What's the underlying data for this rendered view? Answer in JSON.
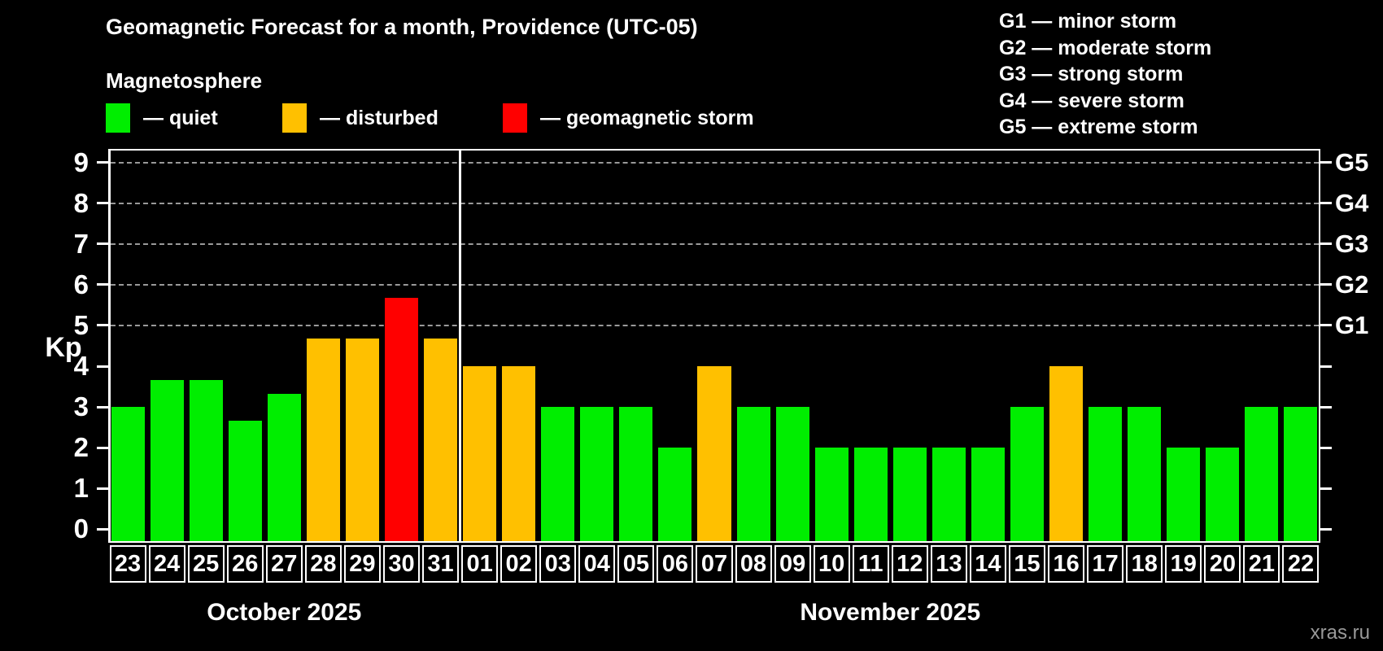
{
  "title": "Geomagnetic Forecast for a month, Providence (UTC-05)",
  "subtitle": "Magnetosphere",
  "legend": {
    "items": [
      {
        "status": "quiet",
        "label": "— quiet",
        "color": "#00ee00"
      },
      {
        "status": "disturbed",
        "label": "— disturbed",
        "color": "#ffc000"
      },
      {
        "status": "storm",
        "label": "— geomagnetic storm",
        "color": "#ff0000"
      }
    ]
  },
  "storm_scale_legend": [
    "G1 — minor storm",
    "G2 — moderate storm",
    "G3 — strong storm",
    "G4 — severe storm",
    "G5 — extreme storm"
  ],
  "watermark": "xras.ru",
  "chart_data": {
    "type": "bar",
    "title": "Geomagnetic Forecast for a month, Providence (UTC-05)",
    "ylabel": "Kp",
    "ylim": [
      -0.33,
      9.33
    ],
    "grid": "dashed horizontal lines at Kp 5-9 only",
    "kp_ticks": [
      0,
      1,
      2,
      3,
      4,
      5,
      6,
      7,
      8,
      9
    ],
    "g_levels": [
      {
        "kp": 5,
        "label": "G1"
      },
      {
        "kp": 6,
        "label": "G2"
      },
      {
        "kp": 7,
        "label": "G3"
      },
      {
        "kp": 8,
        "label": "G4"
      },
      {
        "kp": 9,
        "label": "G5"
      }
    ],
    "colors": {
      "quiet": "#00ee00",
      "disturbed": "#ffc000",
      "storm": "#ff0000"
    },
    "months": [
      {
        "label": "October 2025",
        "count": 9
      },
      {
        "label": "November 2025",
        "count": 22
      }
    ],
    "bars": [
      {
        "day": "23",
        "month": "October 2025",
        "value": 3.0,
        "status": "quiet"
      },
      {
        "day": "24",
        "month": "October 2025",
        "value": 3.67,
        "status": "quiet"
      },
      {
        "day": "25",
        "month": "October 2025",
        "value": 3.67,
        "status": "quiet"
      },
      {
        "day": "26",
        "month": "October 2025",
        "value": 2.67,
        "status": "quiet"
      },
      {
        "day": "27",
        "month": "October 2025",
        "value": 3.33,
        "status": "quiet"
      },
      {
        "day": "28",
        "month": "October 2025",
        "value": 4.67,
        "status": "disturbed"
      },
      {
        "day": "29",
        "month": "October 2025",
        "value": 4.67,
        "status": "disturbed"
      },
      {
        "day": "30",
        "month": "October 2025",
        "value": 5.67,
        "status": "storm"
      },
      {
        "day": "31",
        "month": "October 2025",
        "value": 4.67,
        "status": "disturbed"
      },
      {
        "day": "01",
        "month": "November 2025",
        "value": 4.0,
        "status": "disturbed"
      },
      {
        "day": "02",
        "month": "November 2025",
        "value": 4.0,
        "status": "disturbed"
      },
      {
        "day": "03",
        "month": "November 2025",
        "value": 3.0,
        "status": "quiet"
      },
      {
        "day": "04",
        "month": "November 2025",
        "value": 3.0,
        "status": "quiet"
      },
      {
        "day": "05",
        "month": "November 2025",
        "value": 3.0,
        "status": "quiet"
      },
      {
        "day": "06",
        "month": "November 2025",
        "value": 2.0,
        "status": "quiet"
      },
      {
        "day": "07",
        "month": "November 2025",
        "value": 4.0,
        "status": "disturbed"
      },
      {
        "day": "08",
        "month": "November 2025",
        "value": 3.0,
        "status": "quiet"
      },
      {
        "day": "09",
        "month": "November 2025",
        "value": 3.0,
        "status": "quiet"
      },
      {
        "day": "10",
        "month": "November 2025",
        "value": 2.0,
        "status": "quiet"
      },
      {
        "day": "11",
        "month": "November 2025",
        "value": 2.0,
        "status": "quiet"
      },
      {
        "day": "12",
        "month": "November 2025",
        "value": 2.0,
        "status": "quiet"
      },
      {
        "day": "13",
        "month": "November 2025",
        "value": 2.0,
        "status": "quiet"
      },
      {
        "day": "14",
        "month": "November 2025",
        "value": 2.0,
        "status": "quiet"
      },
      {
        "day": "15",
        "month": "November 2025",
        "value": 3.0,
        "status": "quiet"
      },
      {
        "day": "16",
        "month": "November 2025",
        "value": 4.0,
        "status": "disturbed"
      },
      {
        "day": "17",
        "month": "November 2025",
        "value": 3.0,
        "status": "quiet"
      },
      {
        "day": "18",
        "month": "November 2025",
        "value": 3.0,
        "status": "quiet"
      },
      {
        "day": "19",
        "month": "November 2025",
        "value": 2.0,
        "status": "quiet"
      },
      {
        "day": "20",
        "month": "November 2025",
        "value": 2.0,
        "status": "quiet"
      },
      {
        "day": "21",
        "month": "November 2025",
        "value": 3.0,
        "status": "quiet"
      },
      {
        "day": "22",
        "month": "November 2025",
        "value": 3.0,
        "status": "quiet"
      }
    ]
  }
}
